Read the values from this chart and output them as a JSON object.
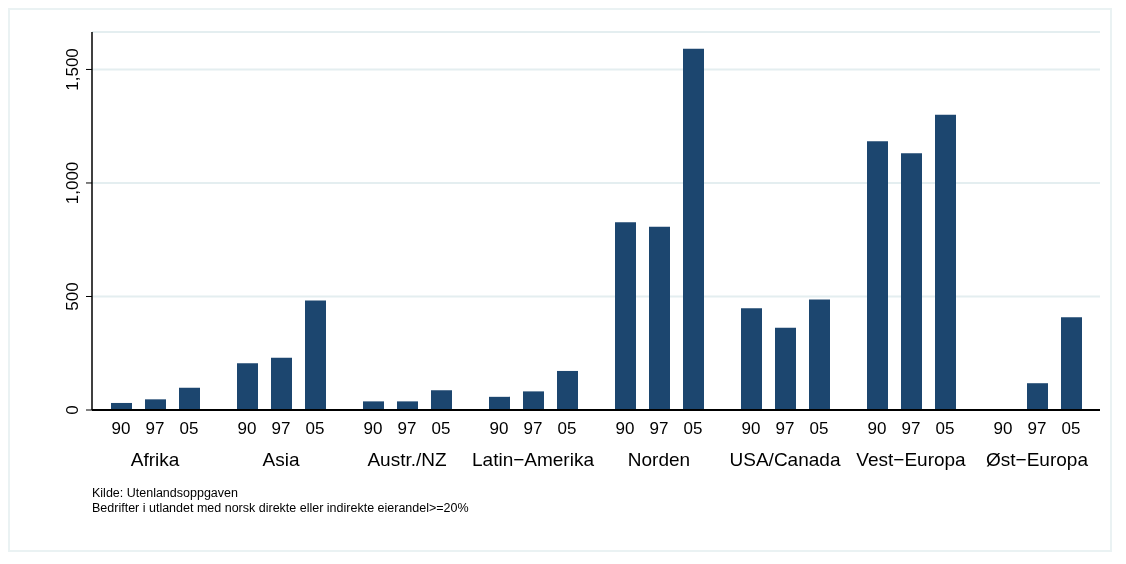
{
  "chart_data": {
    "type": "bar",
    "categories": [
      "Afrika",
      "Asia",
      "Austr./NZ",
      "Latin−Amerika",
      "Norden",
      "USA/Canada",
      "Vest−Europa",
      "Øst−Europa"
    ],
    "series": [
      {
        "name": "90",
        "color": "#1c466f",
        "values": [
          31,
          206,
          38,
          58,
          827,
          448,
          1184,
          3
        ]
      },
      {
        "name": "97",
        "color": "#1c466f",
        "values": [
          47,
          230,
          38,
          82,
          807,
          362,
          1131,
          118
        ]
      },
      {
        "name": "05",
        "color": "#1c466f",
        "values": [
          98,
          482,
          87,
          172,
          1591,
          487,
          1301,
          409
        ]
      }
    ],
    "ylim": [
      0,
      1665
    ],
    "yticks": [
      0,
      {
        "value": 500,
        "label": "500"
      },
      {
        "value": 1000,
        "label": "1,000"
      },
      {
        "value": 1500,
        "label": "1,500"
      }
    ],
    "grid": "y",
    "legend": false,
    "annotations": [
      "Kilde: Utenlandsoppgaven",
      "Bedrifter i utlandet med norsk direkte eller indirekte eierandel>=20%"
    ]
  }
}
